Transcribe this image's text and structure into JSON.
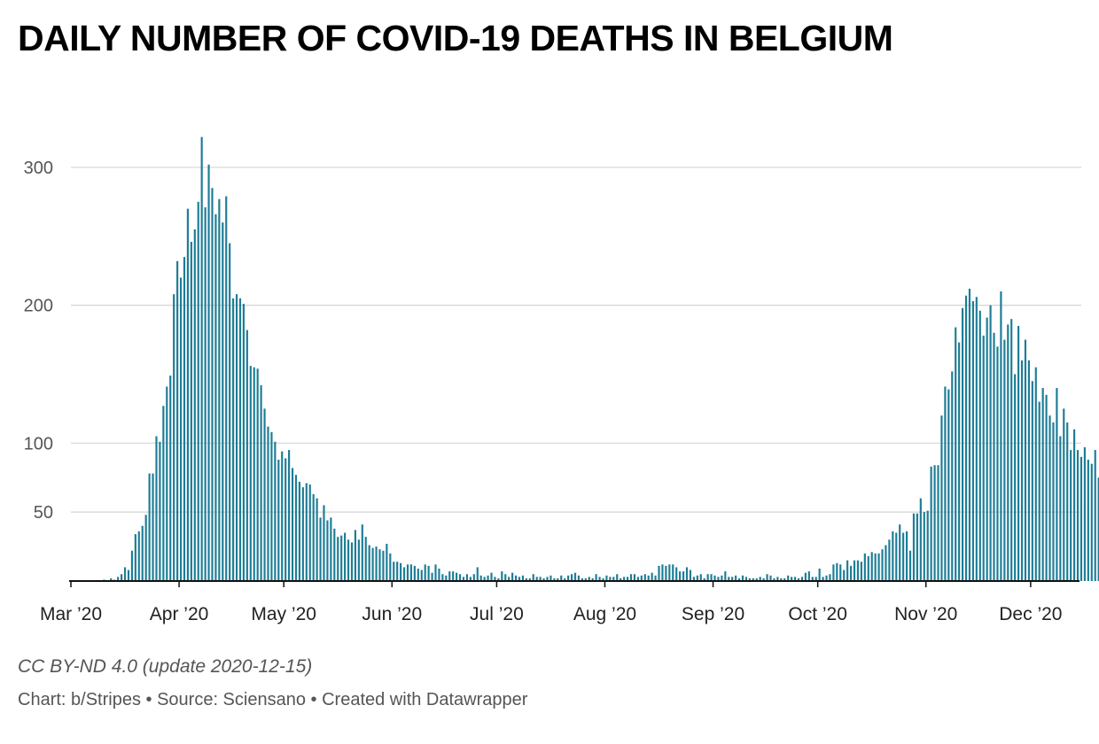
{
  "title": "DAILY NUMBER OF COVID-19 DEATHS IN BELGIUM",
  "footer": {
    "license": "CC BY-ND 4.0 (update 2020-12-15)",
    "credits": [
      "Chart: b/Stripes",
      "Source: Sciensano",
      "Created with Datawrapper"
    ],
    "separator": " • "
  },
  "chart_data": {
    "type": "bar",
    "title": "DAILY NUMBER OF COVID-19 DEATHS IN BELGIUM",
    "xlabel": "",
    "ylabel": "",
    "x_range": [
      "2020-03-01",
      "2020-12-14"
    ],
    "ylim": [
      0,
      325
    ],
    "y_ticks": [
      50,
      100,
      200,
      300
    ],
    "x_ticks": [
      {
        "date": "2020-03-01",
        "label": "Mar ’20"
      },
      {
        "date": "2020-04-01",
        "label": "Apr ’20"
      },
      {
        "date": "2020-05-01",
        "label": "May ’20"
      },
      {
        "date": "2020-06-01",
        "label": "Jun ’20"
      },
      {
        "date": "2020-07-01",
        "label": "Jul ’20"
      },
      {
        "date": "2020-08-01",
        "label": "Aug ’20"
      },
      {
        "date": "2020-09-01",
        "label": "Sep ’20"
      },
      {
        "date": "2020-10-01",
        "label": "Oct ’20"
      },
      {
        "date": "2020-11-01",
        "label": "Nov ’20"
      },
      {
        "date": "2020-12-01",
        "label": "Dec ’20"
      }
    ],
    "grid": true,
    "bar_color": "#1d7d96",
    "series": [
      {
        "start": "2020-03-10",
        "values": [
          1,
          0,
          2,
          1,
          3,
          5,
          10,
          8,
          22,
          34,
          36,
          40,
          48,
          78,
          78,
          105,
          101,
          127,
          141,
          149,
          208,
          232,
          220,
          235,
          270,
          246,
          255,
          275,
          322,
          271,
          302,
          285,
          266,
          277,
          260,
          279,
          245,
          205,
          208,
          205,
          201,
          182,
          156,
          155,
          154,
          142,
          125,
          112,
          108,
          101,
          88,
          94,
          89,
          95,
          82,
          77,
          72,
          68,
          71,
          70,
          63,
          60,
          46,
          55,
          44,
          46,
          38,
          32,
          33,
          35,
          30,
          28,
          37,
          30,
          41,
          32,
          26,
          24,
          25,
          23,
          22,
          27,
          20,
          14,
          14,
          13,
          10,
          12,
          12,
          11,
          9,
          8,
          12,
          11,
          6,
          12,
          9,
          5,
          4,
          7,
          7,
          6,
          5,
          3,
          5,
          3,
          5,
          10,
          4,
          3,
          4,
          6,
          3,
          2,
          7,
          5,
          3,
          6,
          4,
          3,
          4,
          2,
          2,
          5,
          3,
          3,
          2,
          3,
          4,
          2,
          2,
          4,
          2,
          4,
          5,
          6,
          4,
          2,
          2,
          3,
          2,
          5,
          3,
          2,
          4,
          3,
          3,
          5,
          2,
          3,
          3,
          5,
          5,
          3,
          4,
          5,
          4,
          6,
          4,
          11,
          12,
          11,
          12,
          12,
          10,
          7,
          7,
          10,
          8,
          3,
          4,
          5,
          2,
          5,
          5,
          4,
          3,
          4,
          7,
          3,
          3,
          4,
          2,
          4,
          3,
          2,
          2,
          2,
          3,
          2,
          5,
          4,
          2,
          3,
          2,
          2,
          4,
          3,
          3,
          2,
          3,
          6,
          7,
          3,
          3,
          9,
          3,
          4,
          5,
          12,
          13,
          12,
          8,
          15,
          11,
          15,
          15,
          14,
          20,
          18,
          21,
          20,
          20,
          23,
          26,
          30,
          36,
          35,
          41,
          35,
          36,
          22,
          49,
          49,
          60,
          50,
          51,
          83,
          84,
          84,
          120,
          141,
          139,
          152,
          184,
          173,
          198,
          207,
          212,
          203,
          206,
          196,
          178,
          191,
          200,
          180,
          170,
          210,
          175,
          186,
          190,
          150,
          185,
          160,
          175,
          160,
          145,
          155,
          130,
          140,
          135,
          120,
          115,
          140,
          105,
          125,
          115,
          95,
          110,
          95,
          90,
          97,
          88,
          85,
          95,
          75,
          60
        ]
      }
    ]
  }
}
